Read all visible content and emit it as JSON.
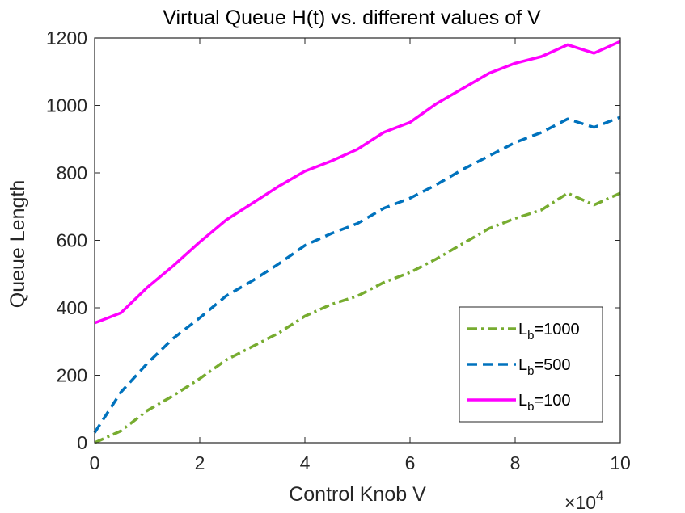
{
  "chart_data": {
    "type": "line",
    "title": "Virtual Queue H(t) vs. different values of V",
    "xlabel": "Control Knob V",
    "ylabel": "Queue Length",
    "x_multiplier_label": "×10",
    "x_multiplier_exponent": "4",
    "xlim": [
      0,
      10
    ],
    "ylim": [
      0,
      1200
    ],
    "xticks": [
      0,
      2,
      4,
      6,
      8,
      10
    ],
    "yticks": [
      0,
      200,
      400,
      600,
      800,
      1000,
      1200
    ],
    "x": [
      0,
      0.5,
      1,
      1.5,
      2,
      2.5,
      3,
      3.5,
      4,
      4.5,
      5,
      5.5,
      6,
      6.5,
      7,
      7.5,
      8,
      8.5,
      9,
      9.5,
      10
    ],
    "series": [
      {
        "name": "L_b=1000",
        "legend_main": "L",
        "legend_sub": "b",
        "legend_rest": "=1000",
        "color": "#77AC30",
        "style": "dash-dot",
        "values": [
          0,
          35,
          95,
          140,
          190,
          245,
          285,
          325,
          375,
          410,
          435,
          475,
          505,
          545,
          590,
          635,
          665,
          690,
          740,
          705,
          740
        ]
      },
      {
        "name": "L_b=500",
        "legend_main": "L",
        "legend_sub": "b",
        "legend_rest": "=500",
        "color": "#0072BD",
        "style": "dashed",
        "values": [
          30,
          150,
          235,
          310,
          370,
          435,
          480,
          530,
          585,
          620,
          650,
          695,
          725,
          765,
          810,
          850,
          890,
          920,
          960,
          935,
          965
        ]
      },
      {
        "name": "L_b=100",
        "legend_main": "L",
        "legend_sub": "b",
        "legend_rest": "=100",
        "color": "#FF00FF",
        "style": "solid",
        "values": [
          355,
          385,
          460,
          525,
          595,
          660,
          710,
          760,
          805,
          835,
          870,
          920,
          950,
          1005,
          1050,
          1095,
          1125,
          1145,
          1180,
          1155,
          1190
        ]
      }
    ],
    "legend_position": "bottom-right",
    "grid": false
  }
}
